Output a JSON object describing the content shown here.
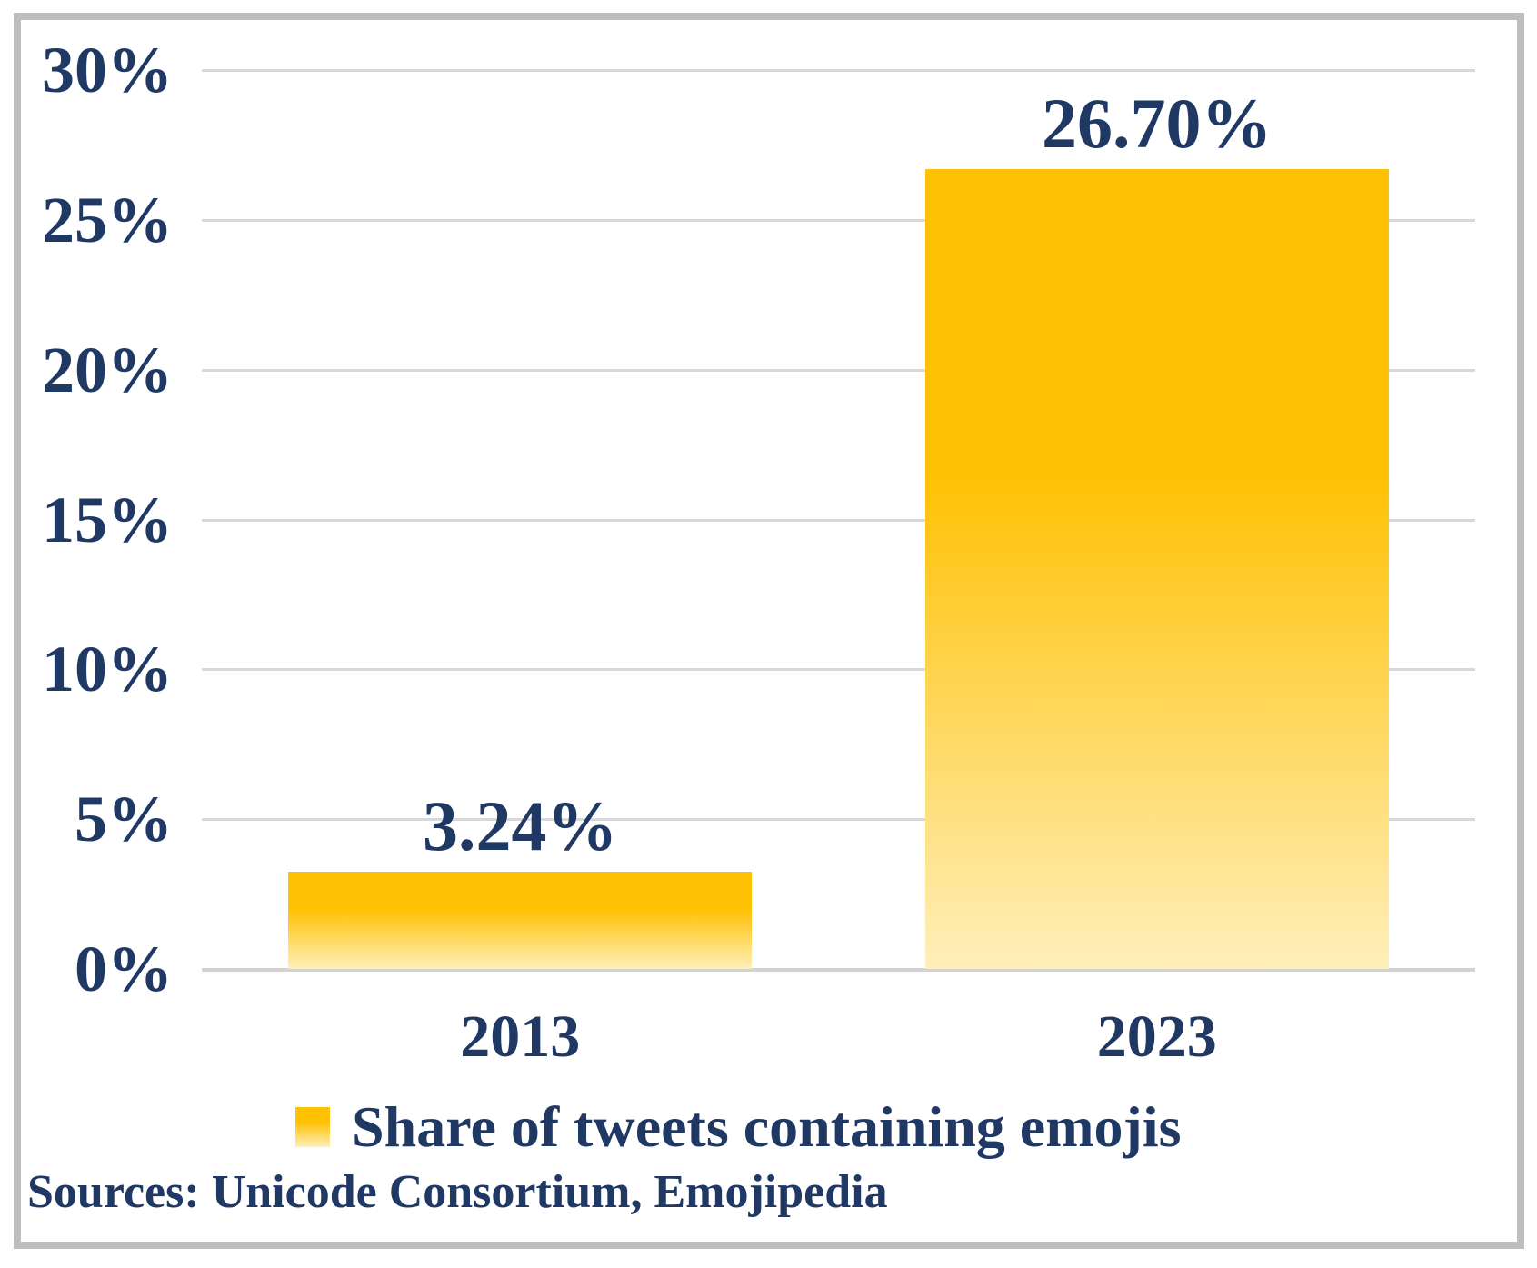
{
  "chart_data": {
    "type": "bar",
    "categories": [
      "2013",
      "2023"
    ],
    "values": [
      3.24,
      26.7
    ],
    "value_labels": [
      "3.24%",
      "26.70%"
    ],
    "series": [
      {
        "name": "Share of tweets containing emojis",
        "values": [
          3.24,
          26.7
        ]
      }
    ],
    "ylim": [
      0,
      30
    ],
    "ytick_step": 5,
    "ytick_labels": [
      "0%",
      "5%",
      "10%",
      "15%",
      "20%",
      "25%",
      "30%"
    ],
    "grid": true,
    "legend_position": "bottom",
    "bar_color": "#FFC103",
    "bar_fade_color": "#FFEFBA"
  },
  "legend": {
    "label": "Share of tweets containing emojis"
  },
  "footer": {
    "sources": "Sources: Unicode Consortium, Emojipedia"
  },
  "colors": {
    "text": "#1F3864",
    "grid": "#D9D9D9",
    "frame_border": "#BEBEBE",
    "background": "#FFFFFF"
  }
}
